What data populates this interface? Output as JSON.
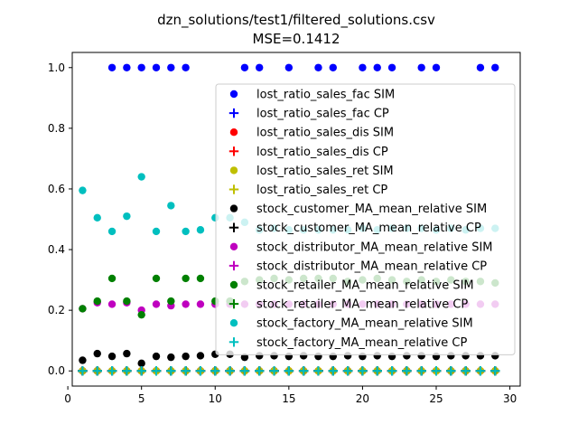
{
  "chart_data": {
    "type": "scatter",
    "title": "dzn_solutions/test1/filtered_solutions.csv",
    "subtitle": "MSE=0.1412",
    "xlabel": "",
    "ylabel": "",
    "xlim": [
      0.3,
      30.7
    ],
    "ylim": [
      -0.05,
      1.05
    ],
    "x_ticks": [
      0,
      5,
      10,
      15,
      20,
      25,
      30
    ],
    "y_ticks": [
      0.0,
      0.2,
      0.4,
      0.6,
      0.8,
      1.0
    ],
    "x_tick_labels": [
      "0",
      "5",
      "10",
      "15",
      "20",
      "25",
      "30"
    ],
    "y_tick_labels": [
      "0.0",
      "0.2",
      "0.4",
      "0.6",
      "0.8",
      "1.0"
    ],
    "grid": false,
    "legend_position": "center-right",
    "x": [
      1,
      2,
      3,
      4,
      5,
      6,
      7,
      8,
      9,
      10,
      11,
      12,
      13,
      14,
      15,
      16,
      17,
      18,
      19,
      20,
      21,
      22,
      23,
      24,
      25,
      26,
      27,
      28,
      29
    ],
    "series": [
      {
        "name": "lost_ratio_sales_fac SIM",
        "marker": "circle",
        "color": "#0000ff",
        "values": [
          0,
          0,
          1,
          1,
          1,
          1,
          1,
          1,
          0,
          0,
          0,
          1,
          1,
          0,
          1,
          0,
          1,
          1,
          0,
          1,
          1,
          1,
          0,
          1,
          1,
          0,
          0,
          1,
          1
        ]
      },
      {
        "name": "lost_ratio_sales_fac CP",
        "marker": "plus",
        "color": "#0000ff",
        "values": [
          0,
          0,
          0,
          0,
          0,
          0,
          0,
          0,
          0,
          0,
          0,
          0,
          0,
          0,
          0,
          0,
          0,
          0,
          0,
          0,
          0,
          0,
          0,
          0,
          0,
          0,
          0,
          0,
          0
        ]
      },
      {
        "name": "lost_ratio_sales_dis SIM",
        "marker": "circle",
        "color": "#ff0000",
        "values": [
          0,
          0,
          0,
          0,
          0,
          0,
          0,
          0,
          0,
          0,
          0,
          0,
          0,
          0,
          0,
          0,
          0,
          0,
          0,
          0,
          0,
          0,
          0,
          0,
          0,
          0,
          0,
          0,
          0
        ]
      },
      {
        "name": "lost_ratio_sales_dis CP",
        "marker": "plus",
        "color": "#ff0000",
        "values": [
          0,
          0,
          0,
          0,
          0,
          0,
          0,
          0,
          0,
          0,
          0,
          0,
          0,
          0,
          0,
          0,
          0,
          0,
          0,
          0,
          0,
          0,
          0,
          0,
          0,
          0,
          0,
          0,
          0
        ]
      },
      {
        "name": "lost_ratio_sales_ret SIM",
        "marker": "circle",
        "color": "#bfbf00",
        "values": [
          0,
          0,
          0,
          0,
          0,
          0,
          0,
          0,
          0,
          0,
          0,
          0,
          0,
          0,
          0,
          0,
          0,
          0,
          0,
          0,
          0,
          0,
          0,
          0,
          0,
          0,
          0,
          0,
          0
        ]
      },
      {
        "name": "lost_ratio_sales_ret CP",
        "marker": "plus",
        "color": "#bfbf00",
        "values": [
          0,
          0,
          0,
          0,
          0,
          0,
          0,
          0,
          0,
          0,
          0,
          0,
          0,
          0,
          0,
          0,
          0,
          0,
          0,
          0,
          0,
          0,
          0,
          0,
          0,
          0,
          0,
          0,
          0
        ]
      },
      {
        "name": "stock_customer_MA_mean_relative SIM",
        "marker": "circle",
        "color": "#000000",
        "values": [
          0.035,
          0.057,
          0.048,
          0.057,
          0.025,
          0.048,
          0.045,
          0.048,
          0.05,
          0.055,
          0.055,
          0.045,
          0.05,
          0.05,
          0.048,
          0.05,
          0.048,
          0.048,
          0.05,
          0.048,
          0.05,
          0.048,
          0.05,
          0.05,
          0.048,
          0.05,
          0.05,
          0.05,
          0.05
        ]
      },
      {
        "name": "stock_customer_MA_mean_relative CP",
        "marker": "plus",
        "color": "#000000",
        "values": [
          0,
          0,
          0,
          0,
          0,
          0,
          0,
          0,
          0,
          0,
          0,
          0,
          0,
          0,
          0,
          0,
          0,
          0,
          0,
          0,
          0,
          0,
          0,
          0,
          0,
          0,
          0,
          0,
          0
        ]
      },
      {
        "name": "stock_distributor_MA_mean_relative SIM",
        "marker": "circle",
        "color": "#bf00bf",
        "values": [
          0.205,
          0.225,
          0.22,
          0.225,
          0.2,
          0.22,
          0.215,
          0.22,
          0.22,
          0.22,
          0.22,
          0.22,
          0.22,
          0.22,
          0.22,
          0.22,
          0.22,
          0.22,
          0.22,
          0.22,
          0.22,
          0.22,
          0.22,
          0.22,
          0.22,
          0.22,
          0.22,
          0.22,
          0.22
        ]
      },
      {
        "name": "stock_distributor_MA_mean_relative CP",
        "marker": "plus",
        "color": "#bf00bf",
        "values": [
          0,
          0,
          0,
          0,
          0,
          0,
          0,
          0,
          0,
          0,
          0,
          0,
          0,
          0,
          0,
          0,
          0,
          0,
          0,
          0,
          0,
          0,
          0,
          0,
          0,
          0,
          0,
          0,
          0
        ]
      },
      {
        "name": "stock_retailer_MA_mean_relative SIM",
        "marker": "circle",
        "color": "#008000",
        "values": [
          0.205,
          0.23,
          0.305,
          0.23,
          0.185,
          0.305,
          0.23,
          0.305,
          0.305,
          0.23,
          0.23,
          0.295,
          0.3,
          0.305,
          0.3,
          0.305,
          0.305,
          0.305,
          0.295,
          0.3,
          0.305,
          0.3,
          0.295,
          0.3,
          0.295,
          0.3,
          0.295,
          0.295,
          0.29
        ]
      },
      {
        "name": "stock_retailer_MA_mean_relative CP",
        "marker": "plus",
        "color": "#008000",
        "values": [
          0,
          0,
          0,
          0,
          0,
          0,
          0,
          0,
          0,
          0,
          0,
          0,
          0,
          0,
          0,
          0,
          0,
          0,
          0,
          0,
          0,
          0,
          0,
          0,
          0,
          0,
          0,
          0,
          0
        ]
      },
      {
        "name": "stock_factory_MA_mean_relative SIM",
        "marker": "circle",
        "color": "#00bfbf",
        "values": [
          0.595,
          0.505,
          0.46,
          0.51,
          0.64,
          0.46,
          0.545,
          0.46,
          0.465,
          0.505,
          0.505,
          0.49,
          0.465,
          0.47,
          0.465,
          0.465,
          0.465,
          0.465,
          0.465,
          0.47,
          0.465,
          0.47,
          0.47,
          0.47,
          0.465,
          0.47,
          0.465,
          0.47,
          0.47
        ]
      },
      {
        "name": "stock_factory_MA_mean_relative CP",
        "marker": "plus",
        "color": "#00bfbf",
        "values": [
          0,
          0,
          0,
          0,
          0,
          0,
          0,
          0,
          0,
          0,
          0,
          0,
          0,
          0,
          0,
          0,
          0,
          0,
          0,
          0,
          0,
          0,
          0,
          0,
          0,
          0,
          0,
          0,
          0
        ]
      }
    ]
  }
}
